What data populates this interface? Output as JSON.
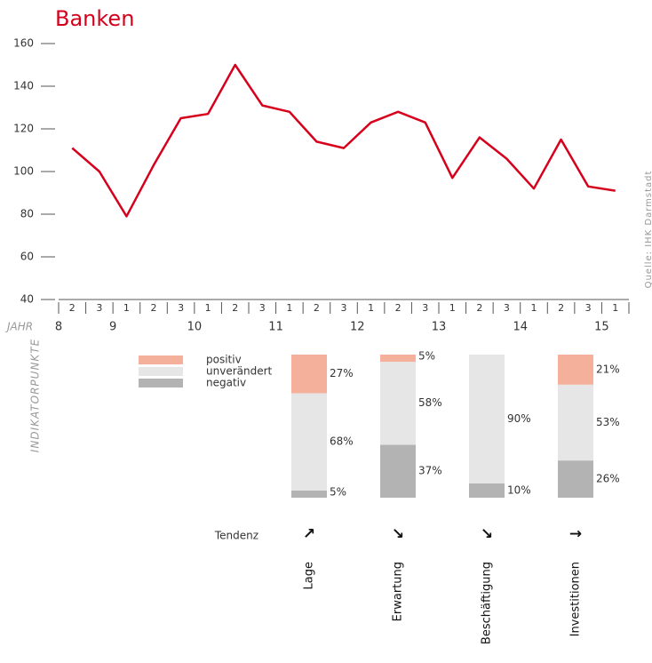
{
  "chart_data": [
    {
      "type": "line",
      "title": "Banken",
      "x_label": "JAHR",
      "y_label": "INDIKATORPUNKTE",
      "note": "Quelle: IHK Darmstadt",
      "categories": [
        "2",
        "3",
        "1",
        "2",
        "3",
        "1",
        "2",
        "3",
        "1",
        "2",
        "3",
        "1",
        "2",
        "3",
        "1",
        "2",
        "3",
        "1",
        "2",
        "3",
        "1"
      ],
      "year_labels": [
        "8",
        "9",
        "10",
        "11",
        "12",
        "13",
        "14",
        "15"
      ],
      "series": [
        {
          "name": "Banken",
          "color": "#d6001c",
          "values": [
            111,
            100,
            79,
            103,
            125,
            127,
            150,
            131,
            128,
            114,
            111,
            123,
            128,
            123,
            97,
            116,
            106,
            92,
            115,
            93,
            91
          ]
        }
      ],
      "ylim": [
        40,
        160
      ],
      "yticks": [
        40,
        60,
        80,
        100,
        120,
        140,
        160
      ],
      "grid": false
    },
    {
      "type": "stacked_bar",
      "tendency_label": "Tendenz",
      "categories": [
        "Lage",
        "Erwartung",
        "Beschäftigung",
        "Investitionen"
      ],
      "tendency": [
        "↗",
        "↘",
        "↘",
        "→"
      ],
      "series": [
        {
          "name": "positiv",
          "color": "#f4b09a",
          "values": [
            27,
            5,
            0,
            21
          ],
          "value_labels": [
            "27%",
            "5%",
            null,
            "21%"
          ]
        },
        {
          "name": "unverändert",
          "color": "#e6e6e6",
          "values": [
            68,
            58,
            90,
            53
          ],
          "value_labels": [
            "68%",
            "58%",
            "90%",
            "53%"
          ]
        },
        {
          "name": "negativ",
          "color": "#b3b3b3",
          "values": [
            5,
            37,
            10,
            26
          ],
          "value_labels": [
            "5%",
            "37%",
            "10%",
            "26%"
          ]
        }
      ],
      "ylim": [
        0,
        100
      ]
    }
  ]
}
